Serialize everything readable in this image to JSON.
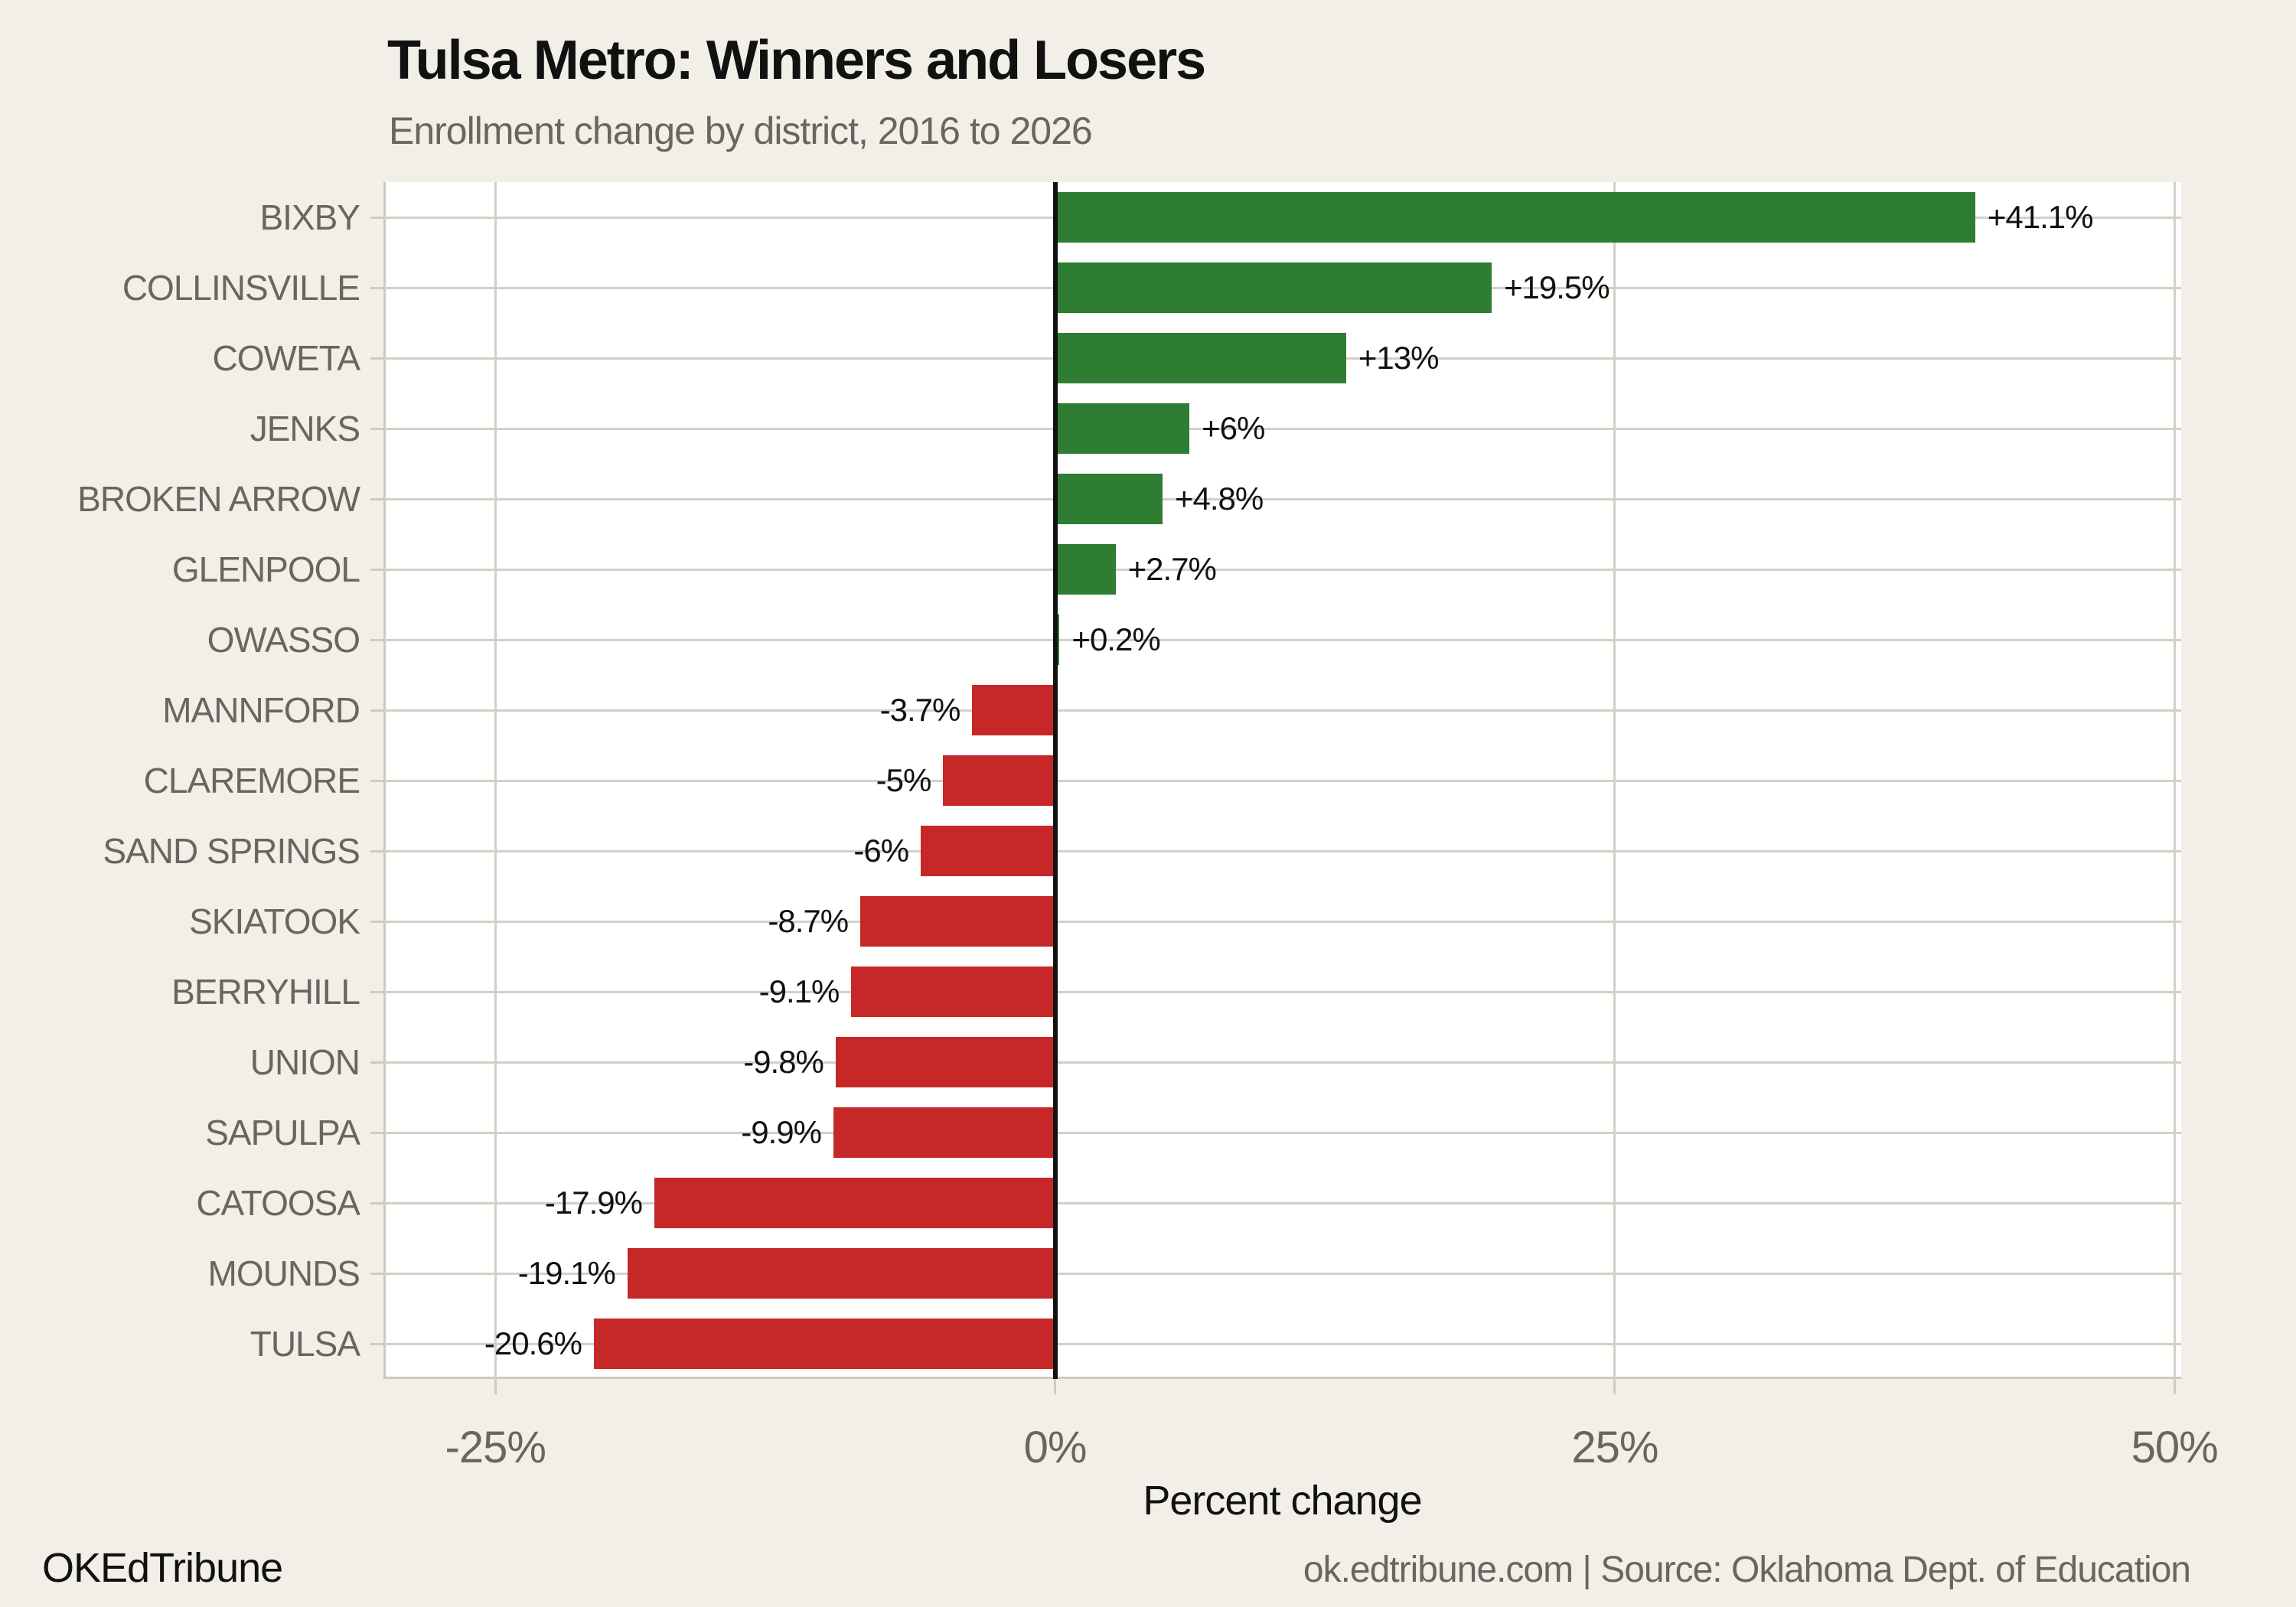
{
  "header": {
    "title": "Tulsa Metro: Winners and Losers",
    "subtitle": "Enrollment change by district, 2016 to 2026"
  },
  "chart_data": {
    "type": "bar",
    "orientation": "horizontal",
    "title": "Tulsa Metro: Winners and Losers",
    "subtitle": "Enrollment change by district, 2016 to 2026",
    "xlabel": "Percent change",
    "categories": [
      "BIXBY",
      "COLLINSVILLE",
      "COWETA",
      "JENKS",
      "BROKEN ARROW",
      "GLENPOOL",
      "OWASSO",
      "MANNFORD",
      "CLAREMORE",
      "SAND SPRINGS",
      "SKIATOOK",
      "BERRYHILL",
      "UNION",
      "SAPULPA",
      "CATOOSA",
      "MOUNDS",
      "TULSA"
    ],
    "values": [
      41.1,
      19.5,
      13,
      6,
      4.8,
      2.7,
      0.2,
      -3.7,
      -5,
      -6,
      -8.7,
      -9.1,
      -9.8,
      -9.9,
      -17.9,
      -19.1,
      -20.6
    ],
    "value_labels": [
      "+41.1%",
      "+19.5%",
      "+13%",
      "+6%",
      "+4.8%",
      "+2.7%",
      "+0.2%",
      "-3.7%",
      "-5%",
      "-6%",
      "-8.7%",
      "-9.1%",
      "-9.8%",
      "-9.9%",
      "-17.9%",
      "-19.1%",
      "-20.6%"
    ],
    "xticks": [
      -25,
      0,
      25,
      50
    ],
    "xtick_labels": [
      "-25%",
      "0%",
      "25%",
      "50%"
    ],
    "xlim": [
      -30,
      50.3
    ],
    "grid": "on",
    "legend": "none",
    "colors": {
      "positive": "#2e7d32",
      "negative": "#c62828",
      "gridline": "#d5cfc5",
      "zero_line": "#111111",
      "text_muted": "#6b655f",
      "text": "#111111",
      "background": "#f2efe9",
      "plot_background": "#ffffff"
    }
  },
  "footer": {
    "brand": "OKEdTribune",
    "source": "ok.edtribune.com | Source: Oklahoma Dept. of Education"
  }
}
